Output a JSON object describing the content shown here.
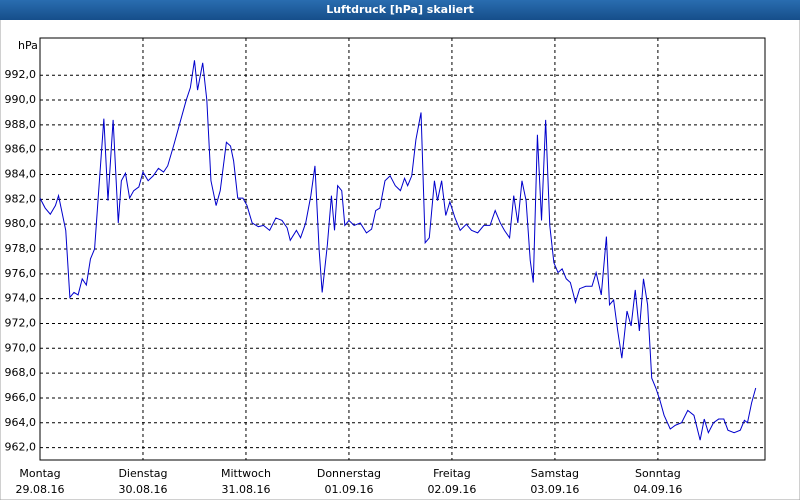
{
  "chart_data": {
    "type": "line",
    "title": "Luftdruck [hPa] skaliert",
    "y_label": "hPa",
    "color": "#0000cc",
    "grid": true,
    "xlim": [
      0,
      7.04
    ],
    "ylim": [
      961,
      995
    ],
    "xticks": [
      {
        "value": 0,
        "label": "Montag",
        "date": "29.08.16"
      },
      {
        "value": 1,
        "label": "Dienstag",
        "date": "30.08.16"
      },
      {
        "value": 2,
        "label": "Mittwoch",
        "date": "31.08.16"
      },
      {
        "value": 3,
        "label": "Donnerstag",
        "date": "01.09.16"
      },
      {
        "value": 4,
        "label": "Freitag",
        "date": "02.09.16"
      },
      {
        "value": 5,
        "label": "Samstag",
        "date": "03.09.16"
      },
      {
        "value": 6,
        "label": "Sonntag",
        "date": "04.09.16"
      }
    ],
    "yticks": [
      {
        "value": 962,
        "label": "962,0"
      },
      {
        "value": 964,
        "label": "964,0"
      },
      {
        "value": 966,
        "label": "966,0"
      },
      {
        "value": 968,
        "label": "968,0"
      },
      {
        "value": 970,
        "label": "970,0"
      },
      {
        "value": 972,
        "label": "972,0"
      },
      {
        "value": 974,
        "label": "974,0"
      },
      {
        "value": 976,
        "label": "976,0"
      },
      {
        "value": 978,
        "label": "978,0"
      },
      {
        "value": 980,
        "label": "980,0"
      },
      {
        "value": 982,
        "label": "982,0"
      },
      {
        "value": 984,
        "label": "984,0"
      },
      {
        "value": 986,
        "label": "986,0"
      },
      {
        "value": 988,
        "label": "988,0"
      },
      {
        "value": 990,
        "label": "990,0"
      },
      {
        "value": 992,
        "label": "992,0"
      }
    ],
    "x": [
      0,
      0.05,
      0.1,
      0.15,
      0.18,
      0.21,
      0.25,
      0.29,
      0.33,
      0.37,
      0.41,
      0.45,
      0.49,
      0.53,
      0.57,
      0.62,
      0.66,
      0.71,
      0.76,
      0.79,
      0.83,
      0.87,
      0.91,
      0.96,
      1.0,
      1.05,
      1.1,
      1.15,
      1.2,
      1.24,
      1.3,
      1.36,
      1.42,
      1.46,
      1.5,
      1.53,
      1.58,
      1.62,
      1.66,
      1.71,
      1.75,
      1.81,
      1.85,
      1.88,
      1.92,
      1.97,
      2.01,
      2.06,
      2.12,
      2.17,
      2.23,
      2.29,
      2.35,
      2.4,
      2.43,
      2.49,
      2.53,
      2.58,
      2.63,
      2.67,
      2.71,
      2.74,
      2.79,
      2.83,
      2.86,
      2.89,
      2.93,
      2.96,
      3.0,
      3.05,
      3.11,
      3.17,
      3.22,
      3.26,
      3.3,
      3.35,
      3.4,
      3.45,
      3.5,
      3.54,
      3.57,
      3.61,
      3.65,
      3.7,
      3.74,
      3.78,
      3.83,
      3.86,
      3.9,
      3.94,
      3.98,
      4.03,
      4.08,
      4.14,
      4.19,
      4.25,
      4.31,
      4.37,
      4.42,
      4.47,
      4.51,
      4.56,
      4.6,
      4.64,
      4.68,
      4.72,
      4.76,
      4.79,
      4.83,
      4.87,
      4.91,
      4.95,
      4.99,
      5.03,
      5.07,
      5.11,
      5.15,
      5.2,
      5.24,
      5.3,
      5.36,
      5.4,
      5.45,
      5.5,
      5.53,
      5.57,
      5.61,
      5.65,
      5.7,
      5.74,
      5.78,
      5.82,
      5.86,
      5.9,
      5.94,
      5.98,
      6.02,
      6.06,
      6.12,
      6.17,
      6.23,
      6.29,
      6.35,
      6.41,
      6.45,
      6.49,
      6.54,
      6.59,
      6.64,
      6.68,
      6.74,
      6.8,
      6.84,
      6.87,
      6.91,
      6.95
    ],
    "values": [
      982.1,
      981.3,
      980.8,
      981.5,
      982.3,
      981.1,
      979.5,
      974.1,
      974.5,
      974.3,
      975.6,
      975.1,
      977.2,
      978.0,
      982.7,
      988.5,
      981.9,
      988.4,
      980.1,
      983.5,
      984.1,
      982.1,
      982.7,
      983.0,
      984.2,
      983.5,
      983.9,
      984.5,
      984.2,
      984.7,
      986.4,
      988.2,
      990.0,
      991.0,
      993.2,
      990.8,
      993.0,
      990.0,
      983.5,
      981.5,
      982.7,
      986.6,
      986.3,
      985.1,
      982.1,
      982.1,
      981.5,
      980.1,
      979.8,
      979.9,
      979.5,
      980.5,
      980.3,
      979.7,
      978.7,
      979.5,
      978.9,
      980.1,
      982.3,
      984.7,
      978.0,
      974.5,
      978.3,
      982.3,
      979.5,
      983.1,
      982.7,
      979.9,
      980.3,
      979.9,
      980.1,
      979.3,
      979.6,
      981.1,
      981.3,
      983.5,
      983.9,
      983.1,
      982.7,
      983.7,
      983.1,
      983.9,
      986.8,
      989.0,
      978.5,
      978.9,
      983.5,
      981.9,
      983.5,
      980.7,
      981.8,
      980.5,
      979.5,
      980.0,
      979.5,
      979.3,
      979.9,
      979.9,
      981.1,
      980.1,
      979.5,
      978.9,
      982.3,
      980.1,
      983.5,
      981.9,
      977.1,
      975.3,
      987.2,
      980.3,
      988.4,
      979.9,
      976.9,
      976.1,
      976.4,
      975.6,
      975.3,
      973.7,
      974.8,
      975.0,
      975.0,
      976.1,
      974.3,
      979.0,
      973.5,
      973.9,
      971.4,
      969.2,
      973.0,
      971.8,
      974.7,
      971.4,
      975.6,
      973.5,
      967.6,
      966.8,
      965.8,
      964.6,
      963.5,
      963.8,
      964.0,
      965.0,
      964.6,
      962.6,
      964.3,
      963.2,
      964.0,
      964.3,
      964.3,
      963.4,
      963.2,
      963.4,
      964.2,
      964.0,
      965.6,
      966.8
    ]
  }
}
